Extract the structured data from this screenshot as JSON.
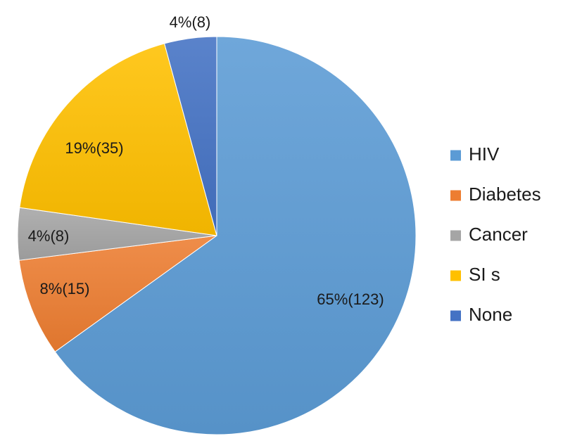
{
  "chart_data": {
    "type": "pie",
    "title": "",
    "start": "12 o'clock, clockwise",
    "slices": [
      {
        "name": "HIV",
        "count": 123,
        "percent": 65,
        "label": "65%(123)",
        "color": "#5b9bd5"
      },
      {
        "name": "Diabetes",
        "count": 15,
        "percent": 8,
        "label": "8%(15)",
        "color": "#ed7d31"
      },
      {
        "name": "Cancer",
        "count": 8,
        "percent": 4,
        "label": "4%(8)",
        "color": "#a5a5a5"
      },
      {
        "name": "SI s",
        "count": 35,
        "percent": 19,
        "label": "19%(35)",
        "color": "#ffc000"
      },
      {
        "name": "None",
        "count": 8,
        "percent": 4,
        "label": "4%(8)",
        "color": "#4472c4"
      }
    ],
    "legend": {
      "position": "right",
      "entries": [
        "HIV",
        "Diabetes",
        "Cancer",
        "SI s",
        "None"
      ]
    }
  }
}
